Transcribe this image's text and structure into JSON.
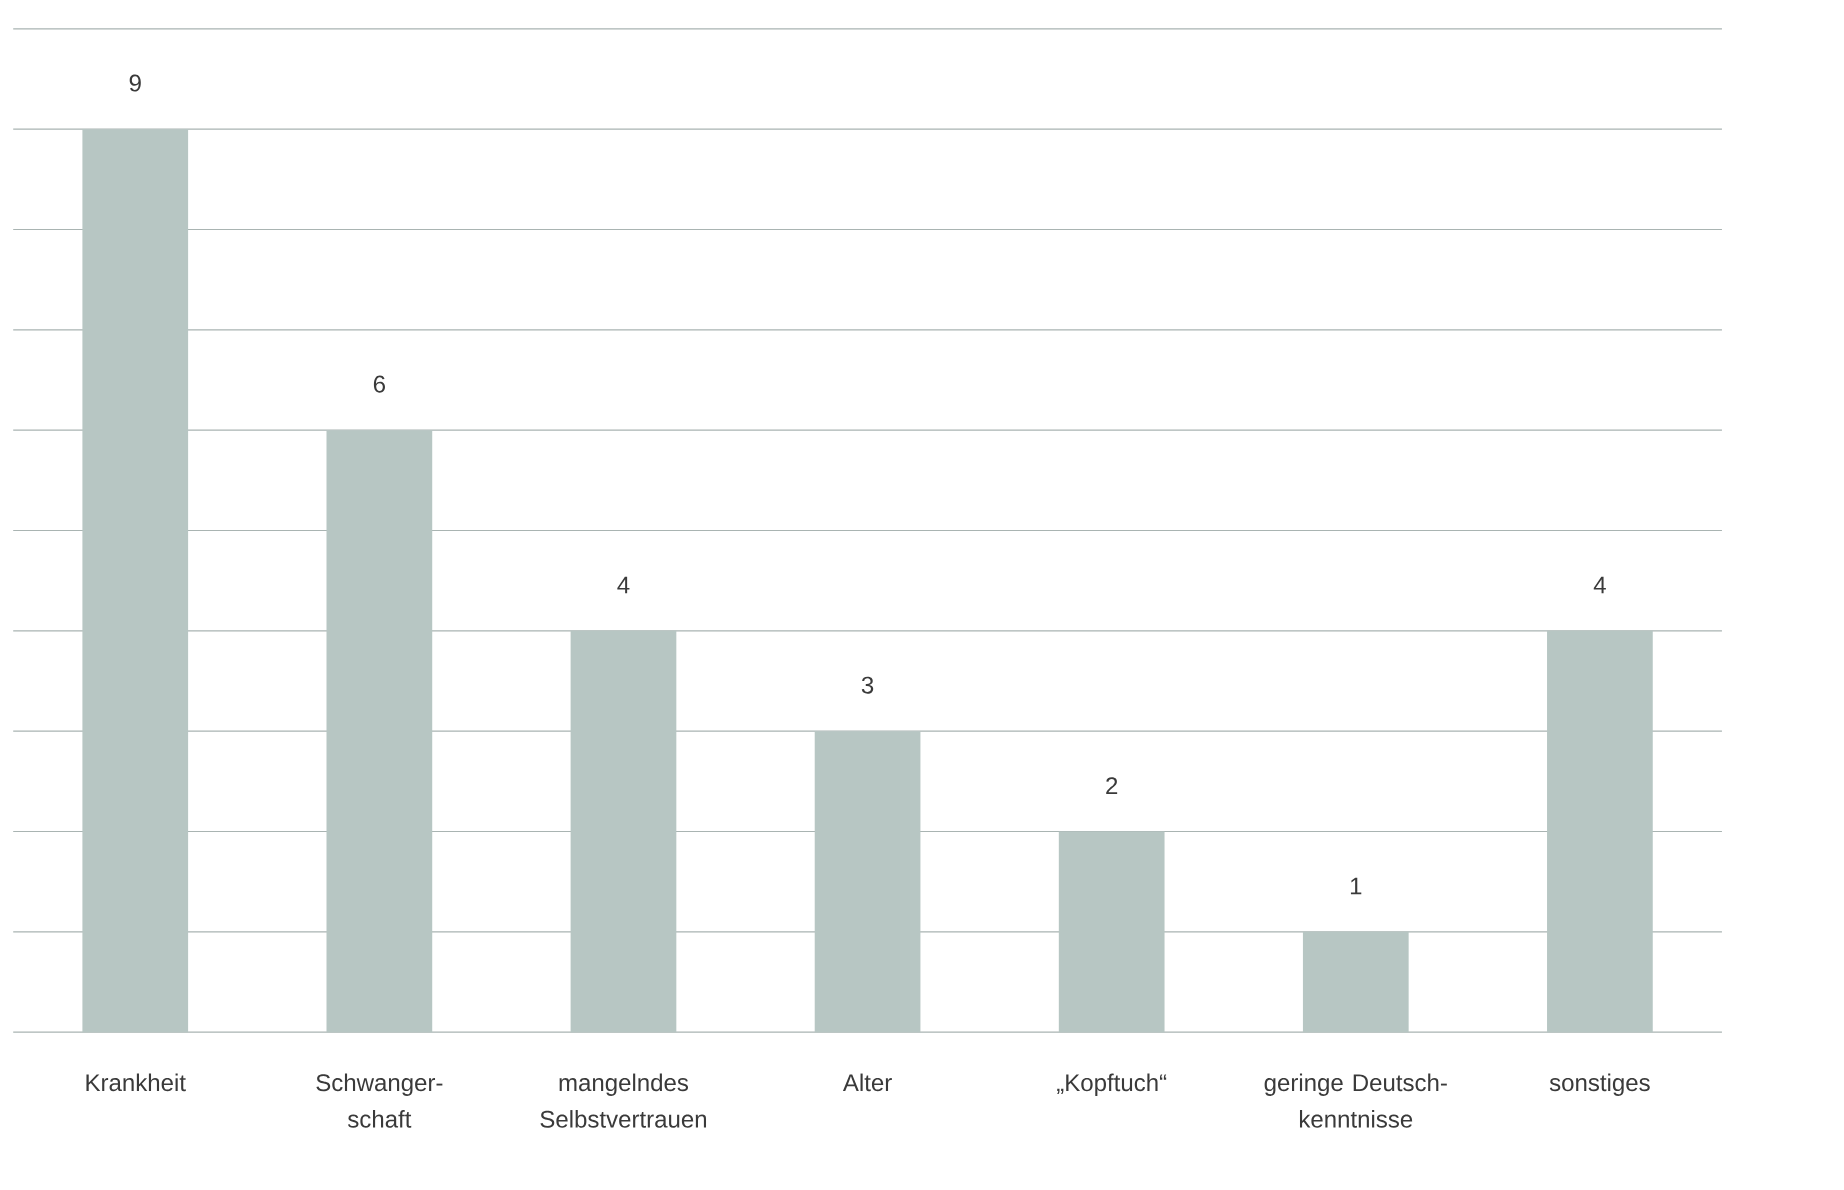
{
  "chart_data": {
    "type": "bar",
    "categories": [
      "Krankheit",
      "Schwanger-schaft",
      "mangelndes Selbstvertrauen",
      "Alter",
      "„Kopftuch“",
      "geringe Deutsch-kenntnisse",
      "sonstiges"
    ],
    "values": [
      9,
      6,
      4,
      3,
      2,
      1,
      4
    ],
    "color": "#b7c6c3",
    "ylim": [
      0,
      10
    ],
    "yticks": [
      {
        "value": 0,
        "label": null
      },
      {
        "value": 1,
        "label": null
      },
      {
        "value": 2,
        "label": null
      },
      {
        "value": 3,
        "label": null
      },
      {
        "value": 4,
        "label": null
      },
      {
        "value": 5,
        "label": null
      },
      {
        "value": 6,
        "label": null
      },
      {
        "value": 7,
        "label": null
      },
      {
        "value": 8,
        "label": null
      },
      {
        "value": 9,
        "label": null
      },
      {
        "value": 10,
        "label": null
      }
    ],
    "tick_labels": "x",
    "grid": "y",
    "data_labels": true
  }
}
